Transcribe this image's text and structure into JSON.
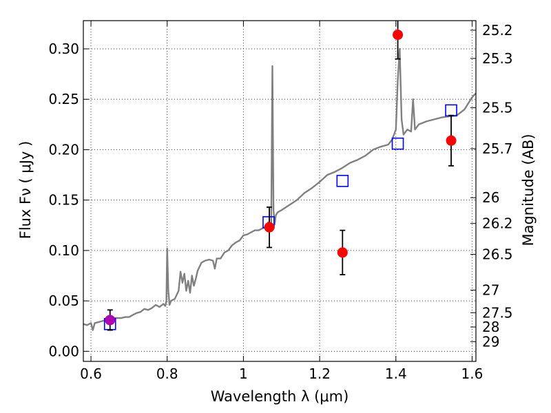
{
  "chart_data": {
    "type": "scatter",
    "title": "",
    "xlabel": "Wavelength  λ (μm)",
    "ylabel": "Flux  Fν  ( μJy )",
    "y2label": "Magnitude (AB)",
    "xlim": [
      0.58,
      1.61
    ],
    "ylim": [
      -0.01,
      0.328
    ],
    "grid": true,
    "xticks": [
      0.6,
      0.8,
      1.0,
      1.2,
      1.4,
      1.6
    ],
    "xtick_labels": [
      "0.6",
      "0.8",
      "1",
      "1.2",
      "1.4",
      "1.6"
    ],
    "yticks": [
      0.0,
      0.05,
      0.1,
      0.15,
      0.2,
      0.25,
      0.3
    ],
    "ytick_labels": [
      "0.00",
      "0.05",
      "0.10",
      "0.15",
      "0.20",
      "0.25",
      "0.30"
    ],
    "y2ticks": [
      {
        "label": "25.2",
        "flux": 0.3185
      },
      {
        "label": "25.3",
        "flux": 0.2905
      },
      {
        "label": "25.5",
        "flux": 0.2416
      },
      {
        "label": "25.7",
        "flux": 0.201
      },
      {
        "label": "26",
        "flux": 0.1524
      },
      {
        "label": "26.2",
        "flux": 0.1268
      },
      {
        "label": "26.5",
        "flux": 0.0962
      },
      {
        "label": "27",
        "flux": 0.0607
      },
      {
        "label": "27.5",
        "flux": 0.0383
      },
      {
        "label": "28",
        "flux": 0.0241
      },
      {
        "label": "29",
        "flux": 0.0096
      }
    ],
    "series": [
      {
        "kind": "line",
        "color": "#808080",
        "x": [
          0.58,
          0.59,
          0.6,
          0.605,
          0.61,
          0.62,
          0.63,
          0.64,
          0.65,
          0.66,
          0.67,
          0.68,
          0.69,
          0.7,
          0.71,
          0.72,
          0.73,
          0.74,
          0.75,
          0.76,
          0.77,
          0.78,
          0.79,
          0.795,
          0.798,
          0.8,
          0.803,
          0.806,
          0.81,
          0.82,
          0.83,
          0.835,
          0.84,
          0.845,
          0.85,
          0.855,
          0.86,
          0.865,
          0.87,
          0.875,
          0.88,
          0.89,
          0.9,
          0.91,
          0.92,
          0.925,
          0.93,
          0.94,
          0.95,
          0.96,
          0.97,
          0.98,
          0.99,
          1.0,
          1.01,
          1.02,
          1.03,
          1.04,
          1.05,
          1.06,
          1.065,
          1.07,
          1.073,
          1.076,
          1.079,
          1.082,
          1.085,
          1.09,
          1.1,
          1.12,
          1.14,
          1.16,
          1.18,
          1.2,
          1.22,
          1.24,
          1.26,
          1.28,
          1.3,
          1.32,
          1.34,
          1.36,
          1.38,
          1.39,
          1.4,
          1.405,
          1.41,
          1.415,
          1.42,
          1.43,
          1.44,
          1.445,
          1.45,
          1.46,
          1.48,
          1.5,
          1.52,
          1.54,
          1.56,
          1.58,
          1.6,
          1.61
        ],
        "y": [
          0.027,
          0.026,
          0.028,
          0.021,
          0.028,
          0.029,
          0.03,
          0.031,
          0.032,
          0.033,
          0.033,
          0.033,
          0.034,
          0.034,
          0.036,
          0.038,
          0.039,
          0.042,
          0.041,
          0.043,
          0.046,
          0.044,
          0.047,
          0.045,
          0.05,
          0.102,
          0.06,
          0.046,
          0.05,
          0.052,
          0.06,
          0.079,
          0.068,
          0.077,
          0.06,
          0.07,
          0.058,
          0.075,
          0.065,
          0.072,
          0.08,
          0.088,
          0.09,
          0.091,
          0.09,
          0.082,
          0.092,
          0.092,
          0.098,
          0.1,
          0.105,
          0.108,
          0.11,
          0.115,
          0.116,
          0.118,
          0.12,
          0.12,
          0.122,
          0.124,
          0.128,
          0.12,
          0.128,
          0.283,
          0.14,
          0.126,
          0.135,
          0.138,
          0.14,
          0.145,
          0.15,
          0.157,
          0.162,
          0.168,
          0.175,
          0.178,
          0.182,
          0.187,
          0.19,
          0.194,
          0.2,
          0.203,
          0.205,
          0.21,
          0.22,
          0.27,
          0.3,
          0.23,
          0.215,
          0.22,
          0.218,
          0.25,
          0.22,
          0.225,
          0.228,
          0.23,
          0.232,
          0.233,
          0.234,
          0.24,
          0.252,
          0.256
        ]
      },
      {
        "kind": "model-squares",
        "color": "#0000ff",
        "points": [
          {
            "x": 0.65,
            "y": 0.027
          },
          {
            "x": 1.066,
            "y": 0.128
          },
          {
            "x": 1.26,
            "y": 0.169
          },
          {
            "x": 1.405,
            "y": 0.206
          },
          {
            "x": 1.545,
            "y": 0.239
          }
        ]
      },
      {
        "kind": "observed",
        "color": "#ff0000",
        "points": [
          {
            "x": 0.65,
            "y": 0.031,
            "err": 0.01,
            "color": "#b000b0"
          },
          {
            "x": 1.068,
            "y": 0.123,
            "err": 0.02
          },
          {
            "x": 1.26,
            "y": 0.098,
            "err": 0.022
          },
          {
            "x": 1.405,
            "y": 0.314,
            "err": 0.024
          },
          {
            "x": 1.545,
            "y": 0.209,
            "err": 0.025
          }
        ]
      }
    ]
  }
}
